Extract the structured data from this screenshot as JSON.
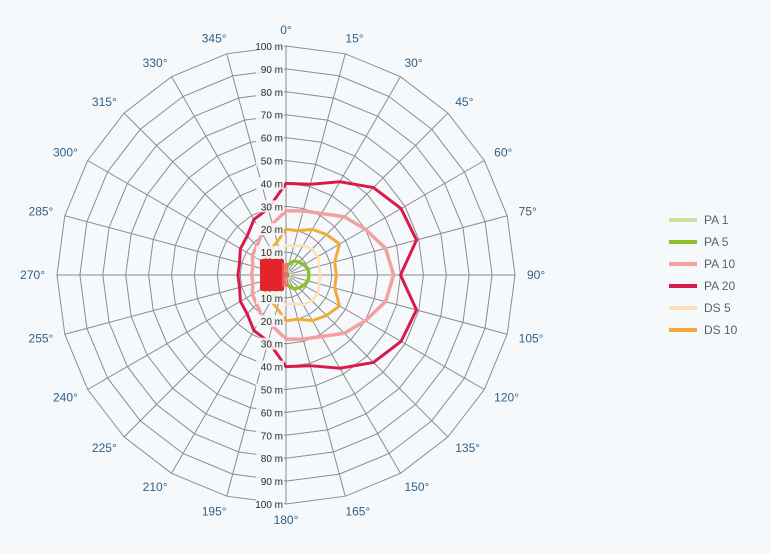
{
  "chart_data": {
    "type": "polar-line",
    "radial_unit": "m",
    "radial_ticks": [
      "10 m",
      "20 m",
      "30 m",
      "40 m",
      "50 m",
      "60 m",
      "70 m",
      "80 m",
      "90 m",
      "100 m"
    ],
    "radial_max": 100,
    "angle_ticks": [
      "0°",
      "15°",
      "30°",
      "45°",
      "60°",
      "75°",
      "90°",
      "105°",
      "120°",
      "135°",
      "150°",
      "165°",
      "180°",
      "195°",
      "210°",
      "225°",
      "240°",
      "255°",
      "270°",
      "285°",
      "300°",
      "315°",
      "330°",
      "345°"
    ],
    "angles": [
      0,
      15,
      30,
      45,
      60,
      75,
      90,
      105,
      120,
      135,
      150,
      165,
      180,
      195,
      210,
      225,
      240,
      255,
      270,
      285,
      300,
      315,
      330,
      345
    ],
    "grid": true,
    "legend_position": "right",
    "series": [
      {
        "name": "PA 1",
        "color": "#c9e2a0",
        "width": 2.5,
        "values": [
          2,
          2,
          2,
          2,
          2,
          2,
          2,
          2,
          2,
          2,
          2,
          2,
          2,
          2,
          2,
          2,
          2,
          2,
          2,
          2,
          2,
          2,
          2,
          2
        ]
      },
      {
        "name": "PA 5",
        "color": "#8fbf2a",
        "width": 3.5,
        "values": [
          4,
          5,
          7,
          8,
          9,
          10,
          10,
          10,
          9,
          8,
          7,
          5,
          4,
          3,
          3,
          3,
          3,
          3,
          3,
          3,
          3,
          3,
          3,
          3
        ]
      },
      {
        "name": "PA 10",
        "color": "#f2a0a0",
        "width": 3.5,
        "values": [
          28,
          29,
          31,
          36,
          40,
          45,
          47,
          45,
          40,
          36,
          31,
          29,
          28,
          23,
          21,
          18,
          17,
          15,
          15,
          15,
          17,
          18,
          21,
          23
        ]
      },
      {
        "name": "PA 20",
        "color": "#d81b4a",
        "width": 3,
        "values": [
          40,
          41,
          47,
          54,
          58,
          59,
          50,
          59,
          58,
          54,
          47,
          41,
          40,
          30,
          28,
          24,
          23,
          21,
          21,
          21,
          23,
          24,
          28,
          30
        ]
      },
      {
        "name": "DS 5",
        "color": "#fce0b8",
        "width": 2.5,
        "values": [
          13,
          13,
          15,
          16,
          16,
          15,
          15,
          15,
          16,
          16,
          15,
          13,
          13,
          10,
          9,
          8,
          7,
          6,
          6,
          6,
          7,
          8,
          9,
          10
        ]
      },
      {
        "name": "DS 10",
        "color": "#f0ac38",
        "width": 3,
        "values": [
          20,
          20,
          23,
          25,
          27,
          22,
          22,
          22,
          27,
          25,
          23,
          20,
          20,
          15,
          13,
          12,
          11,
          10,
          10,
          10,
          11,
          12,
          13,
          15
        ]
      }
    ],
    "center_marker_color": "#e4242a"
  }
}
